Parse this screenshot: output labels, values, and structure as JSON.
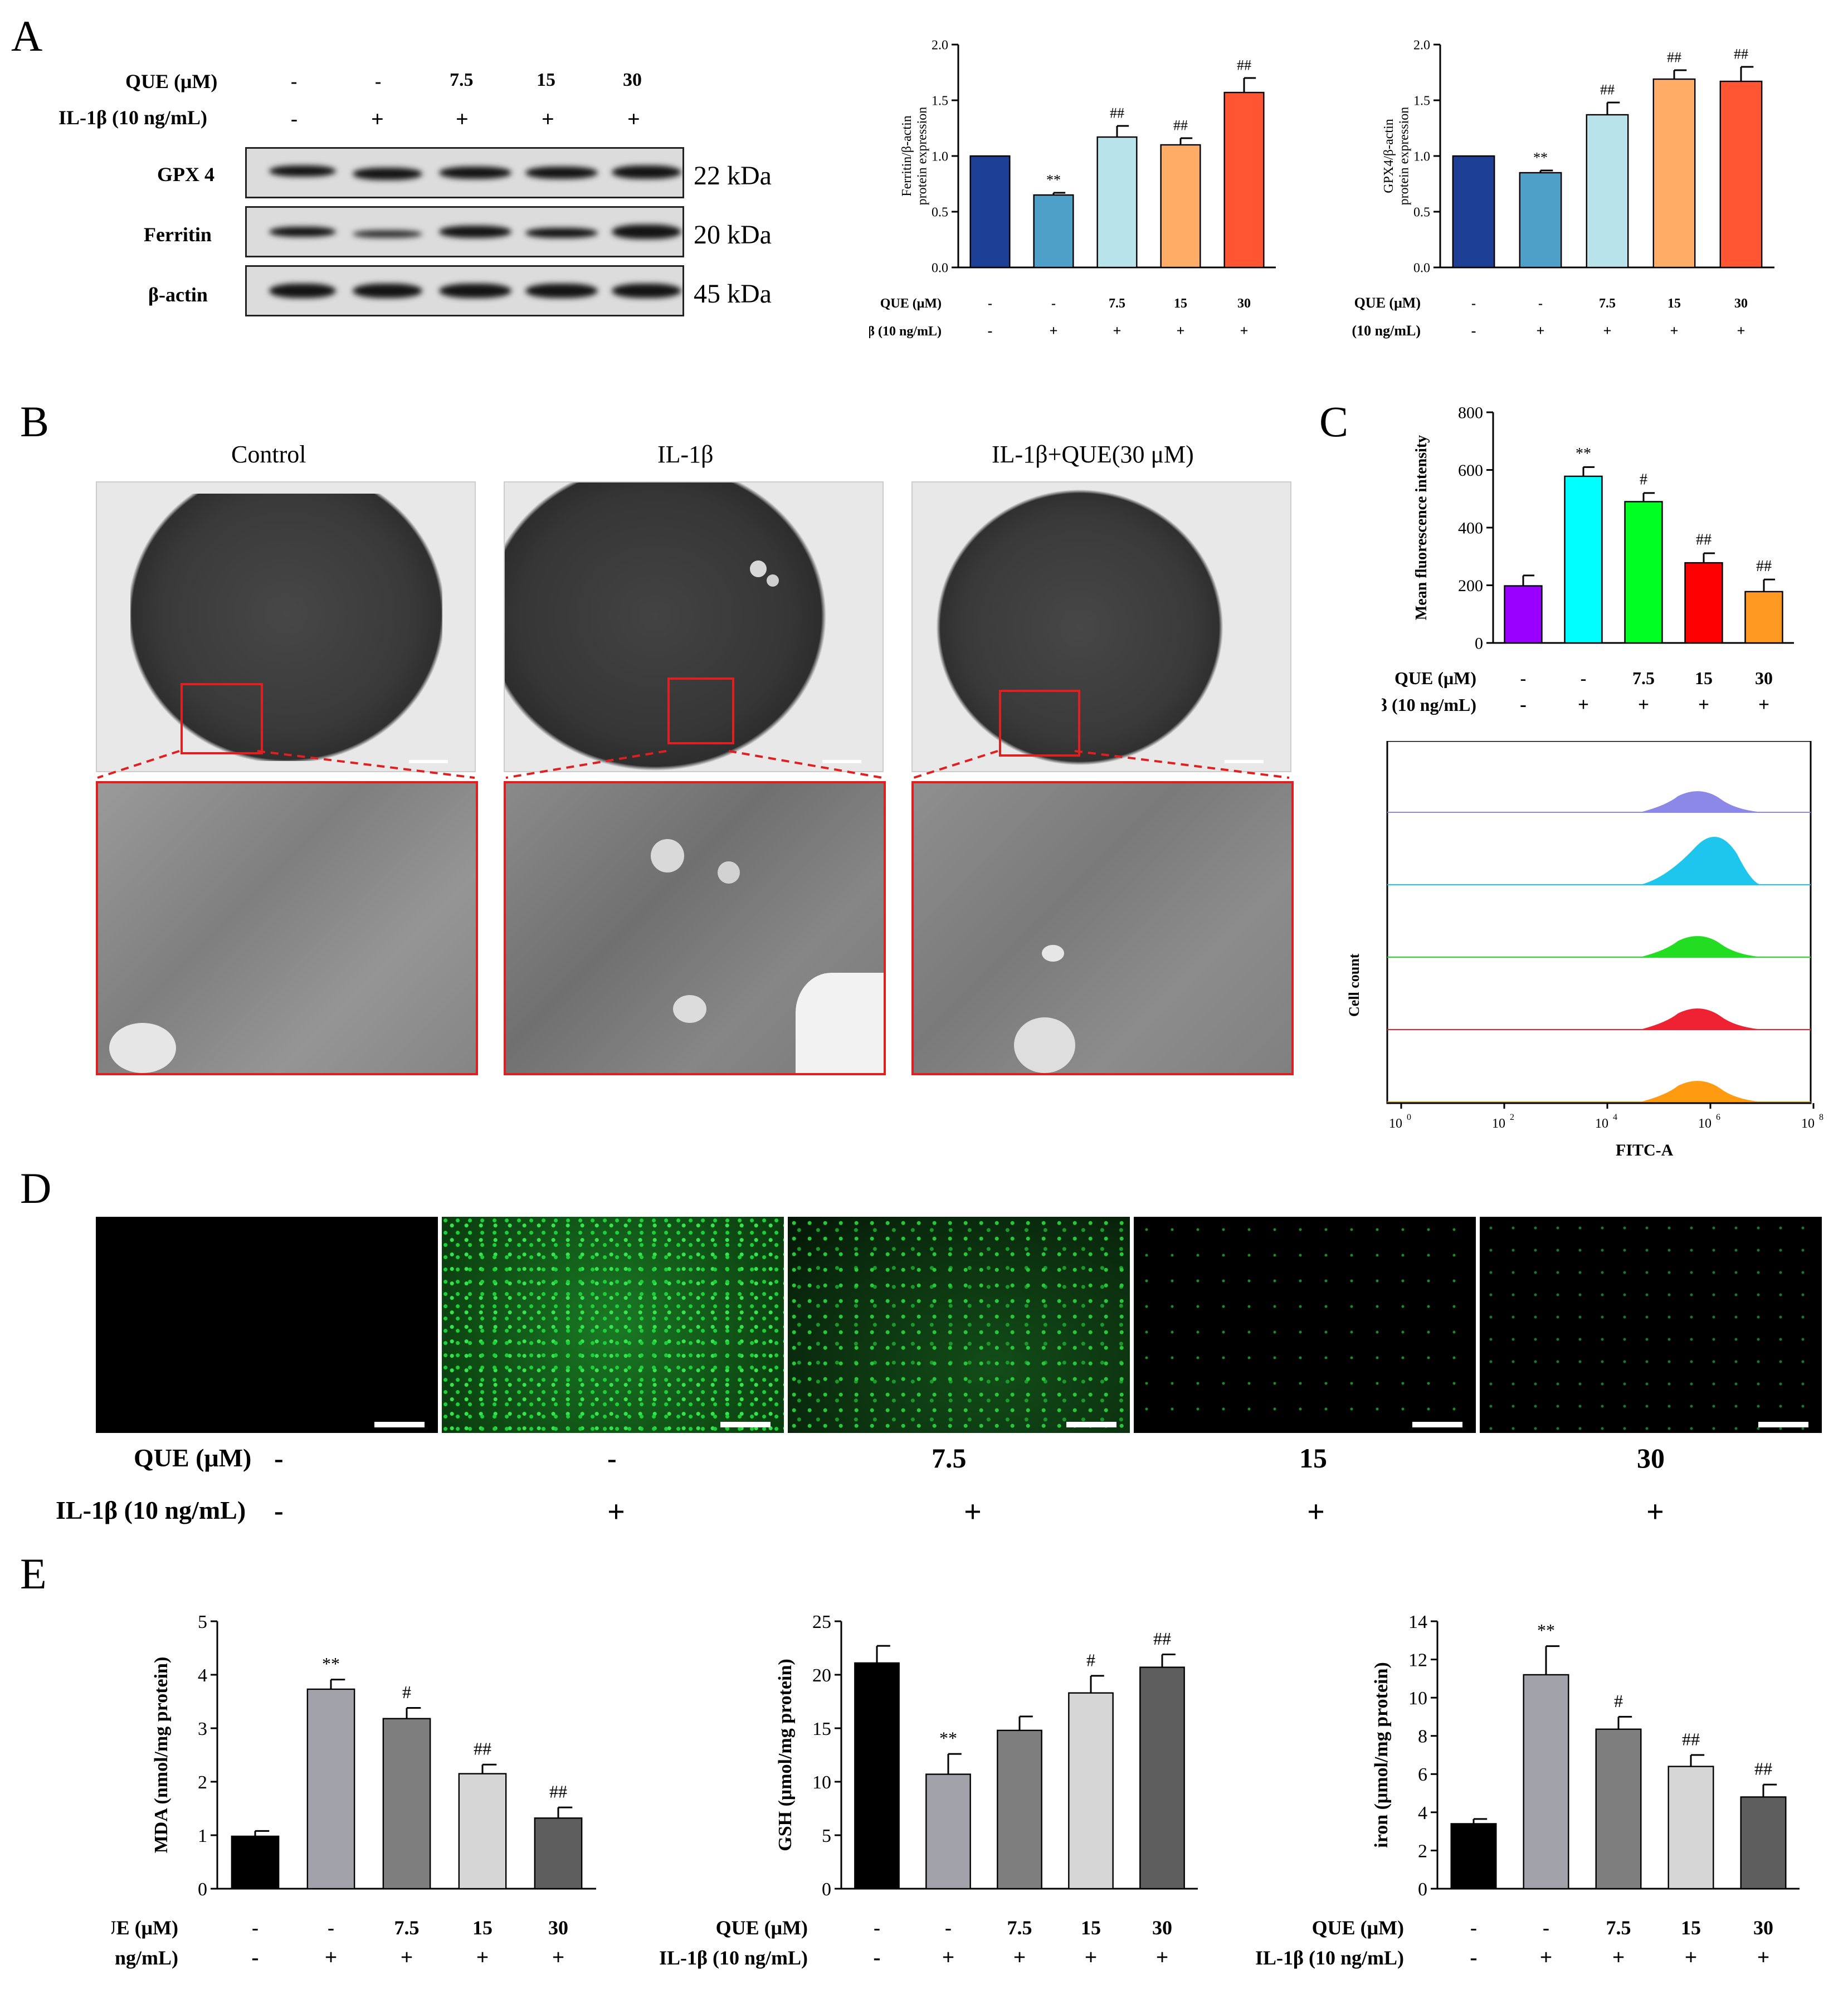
{
  "panels": {
    "a": "A",
    "b": "B",
    "c": "C",
    "d": "D",
    "e": "E"
  },
  "axes_row": {
    "que": "QUE (μM)",
    "il": "IL-1β (10 ng/mL)"
  },
  "treat_que": [
    "-",
    "-",
    "7.5",
    "15",
    "30"
  ],
  "treat_il": [
    "-",
    "+",
    "+",
    "+",
    "+"
  ],
  "western": {
    "que": "QUE (μM)",
    "il": "IL-1β (10 ng/mL)",
    "rows": [
      {
        "label": "GPX 4",
        "kda": "22 kDa"
      },
      {
        "label": "Ferritin",
        "kda": "20 kDa"
      },
      {
        "label": "β-actin",
        "kda": "45 kDa"
      }
    ]
  },
  "tem": {
    "titles": [
      "Control",
      "IL-1β",
      "IL-1β+QUE(30 μM)"
    ]
  },
  "flow": {
    "ylabel": "Cell count",
    "xlabel": "FITC-A",
    "ticks": [
      "0",
      "2",
      "4",
      "6",
      "8"
    ],
    "tick_base": "10"
  },
  "fluor_que": [
    "-",
    "-",
    "7.5",
    "15",
    "30"
  ],
  "fluor_il": [
    "-",
    "+",
    "+",
    "+",
    "+"
  ],
  "colors": {
    "a": [
      "#1d3f95",
      "#4ea0c8",
      "#b8e3ea",
      "#ffad66",
      "#ff5533"
    ],
    "c": [
      "#9a00ff",
      "#00ffff",
      "#00ff22",
      "#ff0000",
      "#ff9922"
    ],
    "e": [
      "#000000",
      "#a2a2aa",
      "#7e7e7e",
      "#d6d6d6",
      "#5e5e5e"
    ],
    "flow": [
      "#8b88e8",
      "#1ec6ee",
      "#22dd22",
      "#ee2233",
      "#ff9a11"
    ]
  },
  "chart_data": [
    {
      "id": "ferritin",
      "type": "bar",
      "categories": [
        "1",
        "2",
        "3",
        "4",
        "5"
      ],
      "values": [
        1.0,
        0.65,
        1.17,
        1.1,
        1.57
      ],
      "errors": [
        0,
        0.02,
        0.1,
        0.06,
        0.13
      ],
      "annotations": [
        "",
        "**",
        "##",
        "##",
        "##"
      ],
      "ylabel": "Ferritin/β-actin protein expression",
      "ylim": [
        0,
        2.0
      ],
      "yticks": [
        "0.0",
        "0.5",
        "1.0",
        "1.5",
        "2.0"
      ]
    },
    {
      "id": "gpx4",
      "type": "bar",
      "categories": [
        "1",
        "2",
        "3",
        "4",
        "5"
      ],
      "values": [
        1.0,
        0.85,
        1.37,
        1.69,
        1.67
      ],
      "errors": [
        0,
        0.02,
        0.11,
        0.08,
        0.13
      ],
      "annotations": [
        "",
        "**",
        "##",
        "##",
        "##"
      ],
      "ylabel": "GPX4/β-actin protein expression",
      "ylim": [
        0,
        2.0
      ],
      "yticks": [
        "0.0",
        "0.5",
        "1.0",
        "1.5",
        "2.0"
      ]
    },
    {
      "id": "mfi",
      "type": "bar",
      "categories": [
        "1",
        "2",
        "3",
        "4",
        "5"
      ],
      "values": [
        198,
        578,
        490,
        278,
        178
      ],
      "errors": [
        36,
        32,
        30,
        33,
        42
      ],
      "annotations": [
        "",
        "**",
        "#",
        "##",
        "##"
      ],
      "ylabel": "Mean fluorescence intensity",
      "ylim": [
        0,
        800
      ],
      "yticks": [
        "0",
        "200",
        "400",
        "600",
        "800"
      ]
    },
    {
      "id": "mda",
      "type": "bar",
      "categories": [
        "1",
        "2",
        "3",
        "4",
        "5"
      ],
      "values": [
        0.98,
        3.73,
        3.18,
        2.15,
        1.32
      ],
      "errors": [
        0.1,
        0.18,
        0.2,
        0.17,
        0.2
      ],
      "annotations": [
        "",
        "**",
        "#",
        "##",
        "##"
      ],
      "ylabel": "MDA (nmol/mg protein)",
      "ylim": [
        0,
        5
      ],
      "yticks": [
        "0",
        "1",
        "2",
        "3",
        "4",
        "5"
      ]
    },
    {
      "id": "gsh",
      "type": "bar",
      "categories": [
        "1",
        "2",
        "3",
        "4",
        "5"
      ],
      "values": [
        21.1,
        10.7,
        14.8,
        18.3,
        20.7
      ],
      "errors": [
        1.6,
        1.9,
        1.3,
        1.6,
        1.2
      ],
      "annotations": [
        "",
        "**",
        "",
        "#",
        "##"
      ],
      "ylabel": "GSH (μmol/mg protein)",
      "ylim": [
        0,
        25
      ],
      "yticks": [
        "0",
        "5",
        "10",
        "15",
        "20",
        "25"
      ]
    },
    {
      "id": "iron",
      "type": "bar",
      "categories": [
        "1",
        "2",
        "3",
        "4",
        "5"
      ],
      "values": [
        3.4,
        11.2,
        8.35,
        6.4,
        4.8
      ],
      "errors": [
        0.25,
        1.5,
        0.65,
        0.6,
        0.65
      ],
      "annotations": [
        "",
        "**",
        "#",
        "##",
        "##"
      ],
      "ylabel": "iron (μmol/mg protein)",
      "ylim": [
        0,
        14
      ],
      "yticks": [
        "0",
        "2",
        "4",
        "6",
        "8",
        "10",
        "12",
        "14"
      ]
    }
  ]
}
